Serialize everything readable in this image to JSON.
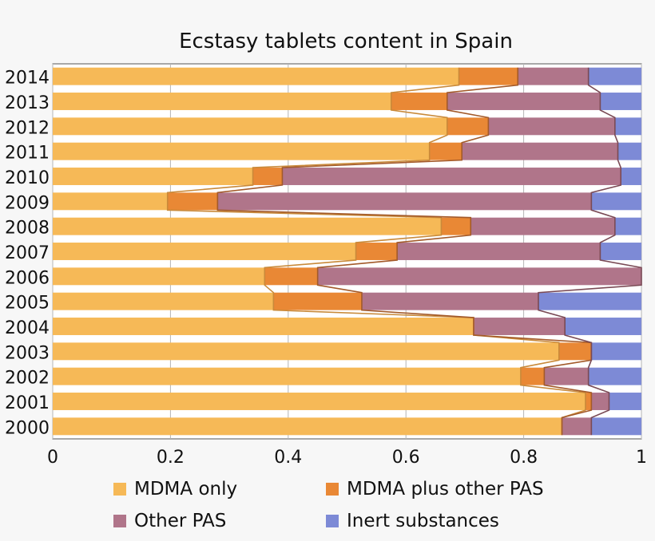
{
  "chart_data": {
    "type": "bar",
    "orientation": "horizontal",
    "stacked": true,
    "title": "Ecstasy tablets content in Spain",
    "categories": [
      "2014",
      "2013",
      "2012",
      "2011",
      "2010",
      "2009",
      "2008",
      "2007",
      "2006",
      "2005",
      "2004",
      "2003",
      "2002",
      "2001",
      "2000"
    ],
    "series": [
      {
        "name": "MDMA only",
        "color": "#f6b957",
        "values": [
          0.69,
          0.575,
          0.67,
          0.64,
          0.34,
          0.195,
          0.66,
          0.515,
          0.36,
          0.375,
          0.715,
          0.86,
          0.795,
          0.905,
          0.865
        ]
      },
      {
        "name": "MDMA plus other PAS",
        "color": "#e98835",
        "values": [
          0.1,
          0.095,
          0.07,
          0.055,
          0.05,
          0.085,
          0.05,
          0.07,
          0.09,
          0.15,
          0.0,
          0.055,
          0.04,
          0.01,
          0.0
        ]
      },
      {
        "name": "Other PAS",
        "color": "#b0758a",
        "values": [
          0.12,
          0.26,
          0.215,
          0.265,
          0.575,
          0.635,
          0.245,
          0.345,
          0.55,
          0.3,
          0.155,
          0.0,
          0.075,
          0.03,
          0.05
        ]
      },
      {
        "name": "Inert substances",
        "color": "#7d8ad6",
        "values": [
          0.09,
          0.07,
          0.045,
          0.04,
          0.035,
          0.085,
          0.045,
          0.07,
          0.0,
          0.175,
          0.13,
          0.085,
          0.09,
          0.055,
          0.085
        ]
      }
    ],
    "xlim": [
      0,
      1
    ],
    "xticks": [
      "0",
      "0.2",
      "0.4",
      "0.6",
      "0.8",
      "1"
    ],
    "grid": true,
    "legend_position": "bottom",
    "xlabel": "",
    "ylabel": ""
  }
}
